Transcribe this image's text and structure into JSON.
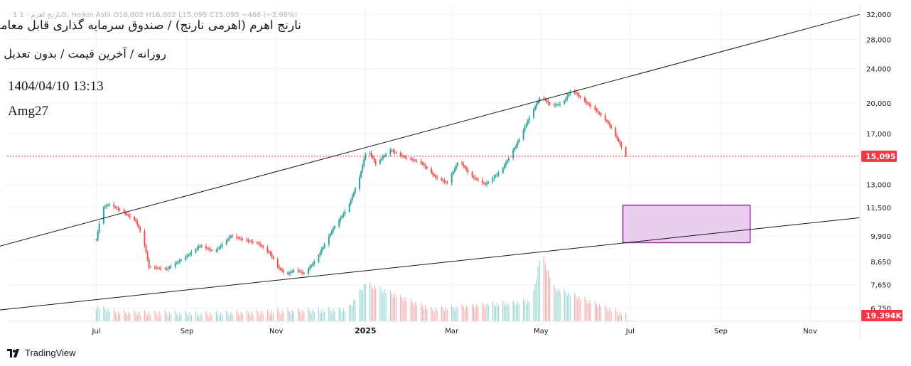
{
  "legend": {
    "ohlc_text": "1  نارنج اهرم · 1D, Heikin Ashi  O16,002  H16,002  L15,095  C15,095  −466 (−2.99%)"
  },
  "overlay": {
    "title": "نارنج اهرم (اهرمی نارنج) / صندوق سرمایه گذاری قابل معامله",
    "subtitle": "روزانه / آخرین قیمت / بدون تعدیل",
    "timestamp": "1404/04/10 13:13",
    "author": "Amg27"
  },
  "branding": {
    "name": "TradingView",
    "icon": "tradingview-logo-icon"
  },
  "colors": {
    "up": "#26a69a",
    "down": "#ef5350",
    "trendline": "#131722",
    "zone_fill": "#e1bee7",
    "zone_border": "#9c27b0",
    "last_price": "#f23645"
  },
  "chart_data": {
    "type": "candlestick",
    "chart_style": "Heikin Ashi",
    "interval": "1D",
    "scale": "log",
    "ylim": [
      6300,
      33500
    ],
    "x_range": [
      "2024-05-01",
      "2025-12-05"
    ],
    "y_ticks": [
      32000,
      28000,
      24000,
      20000,
      17000,
      13000,
      11500,
      9900,
      8650,
      7650,
      6750
    ],
    "y_tick_labels": [
      "32,000",
      "28,000",
      "24,000",
      "20,000",
      "17,000",
      "13,000",
      "11,500",
      "9,900",
      "8,650",
      "7,650",
      "6,750"
    ],
    "x_ticks": [
      {
        "date": "2024-07-01",
        "label": "Jul"
      },
      {
        "date": "2024-09-01",
        "label": "Sep"
      },
      {
        "date": "2024-11-01",
        "label": "Nov"
      },
      {
        "date": "2025-01-01",
        "label": "2025"
      },
      {
        "date": "2025-03-01",
        "label": "Mar"
      },
      {
        "date": "2025-05-01",
        "label": "May"
      },
      {
        "date": "2025-07-01",
        "label": "Jul"
      },
      {
        "date": "2025-09-01",
        "label": "Sep"
      },
      {
        "date": "2025-11-01",
        "label": "Nov"
      }
    ],
    "price_path": [
      [
        "2024-07-01",
        9700
      ],
      [
        "2024-07-05",
        11500
      ],
      [
        "2024-07-10",
        11700
      ],
      [
        "2024-07-20",
        11200
      ],
      [
        "2024-07-28",
        10700
      ],
      [
        "2024-08-02",
        9800
      ],
      [
        "2024-08-06",
        8400
      ],
      [
        "2024-08-18",
        8300
      ],
      [
        "2024-09-01",
        8900
      ],
      [
        "2024-09-10",
        9400
      ],
      [
        "2024-09-20",
        9100
      ],
      [
        "2024-10-01",
        9900
      ],
      [
        "2024-10-10",
        9700
      ],
      [
        "2024-10-20",
        9500
      ],
      [
        "2024-10-28",
        9000
      ],
      [
        "2024-11-02",
        8400
      ],
      [
        "2024-11-08",
        8050
      ],
      [
        "2024-11-14",
        8300
      ],
      [
        "2024-11-20",
        8100
      ],
      [
        "2024-11-28",
        8700
      ],
      [
        "2024-12-10",
        10300
      ],
      [
        "2024-12-20",
        11500
      ],
      [
        "2024-12-28",
        13500
      ],
      [
        "2025-01-02",
        15800
      ],
      [
        "2025-01-08",
        14500
      ],
      [
        "2025-01-18",
        15600
      ],
      [
        "2025-01-28",
        15000
      ],
      [
        "2025-02-08",
        14600
      ],
      [
        "2025-02-18",
        13500
      ],
      [
        "2025-02-26",
        13100
      ],
      [
        "2025-03-06",
        14800
      ],
      [
        "2025-03-14",
        13600
      ],
      [
        "2025-03-24",
        13000
      ],
      [
        "2025-04-04",
        14000
      ],
      [
        "2025-04-14",
        16000
      ],
      [
        "2025-04-24",
        18800
      ],
      [
        "2025-05-01",
        20800
      ],
      [
        "2025-05-08",
        19700
      ],
      [
        "2025-05-16",
        20000
      ],
      [
        "2025-05-22",
        21500
      ],
      [
        "2025-05-30",
        20300
      ],
      [
        "2025-06-08",
        19200
      ],
      [
        "2025-06-16",
        18000
      ],
      [
        "2025-06-22",
        16600
      ],
      [
        "2025-06-28",
        15095
      ]
    ],
    "volume_path": [
      [
        "2024-07-01",
        6700
      ],
      [
        "2024-07-15",
        6500
      ],
      [
        "2024-09-15",
        6450
      ],
      [
        "2024-12-20",
        6600
      ],
      [
        "2025-01-01",
        7600
      ],
      [
        "2025-02-15",
        6600
      ],
      [
        "2025-04-25",
        6900
      ],
      [
        "2025-05-01",
        9000
      ],
      [
        "2025-05-10",
        7400
      ],
      [
        "2025-06-28",
        6400
      ]
    ],
    "last_price": 15095,
    "last_price_label": "15,095",
    "volume_label": "19.394K",
    "trendlines": [
      {
        "name": "upper-channel",
        "start": [
          "2024-04-01",
          8900
        ],
        "end": [
          "2025-12-05",
          32000
        ]
      },
      {
        "name": "lower-channel",
        "start": [
          "2024-04-01",
          6550
        ],
        "end": [
          "2025-12-05",
          10900
        ]
      }
    ],
    "zones": [
      {
        "name": "target-zone",
        "x": [
          "2025-06-26",
          "2025-09-21"
        ],
        "y": [
          9550,
          11650
        ]
      }
    ]
  }
}
